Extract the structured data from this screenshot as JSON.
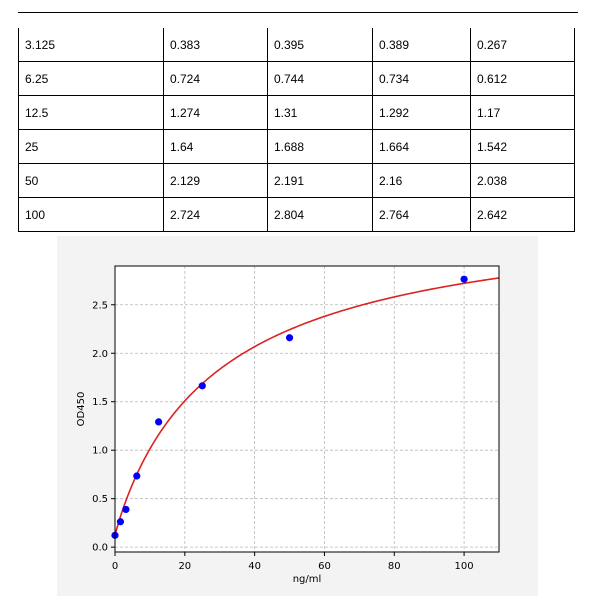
{
  "table": {
    "rows": [
      [
        "3.125",
        "0.383",
        "0.395",
        "0.389",
        "0.267"
      ],
      [
        "6.25",
        "0.724",
        "0.744",
        "0.734",
        "0.612"
      ],
      [
        "12.5",
        "1.274",
        "1.31",
        "1.292",
        "1.17"
      ],
      [
        "25",
        "1.64",
        "1.688",
        "1.664",
        "1.542"
      ],
      [
        "50",
        "2.129",
        "2.191",
        "2.16",
        "2.038"
      ],
      [
        "100",
        "2.724",
        "2.804",
        "2.764",
        "2.642"
      ]
    ]
  },
  "chart_data": {
    "type": "scatter",
    "xlabel": "ng/ml",
    "ylabel": "OD450",
    "xlim": [
      0,
      110
    ],
    "ylim": [
      -0.05,
      2.9
    ],
    "x_ticks": [
      0,
      20,
      40,
      60,
      80,
      100
    ],
    "y_ticks": [
      0.0,
      0.5,
      1.0,
      1.5,
      2.0,
      2.5
    ],
    "grid": true,
    "points": {
      "x": [
        0,
        1.5625,
        3.125,
        6.25,
        12.5,
        25,
        50,
        100
      ],
      "y": [
        0.122,
        0.262,
        0.389,
        0.734,
        1.292,
        1.664,
        2.16,
        2.764
      ],
      "color": "#0000ff"
    },
    "fit_curve": {
      "type": "four-parameter logistic",
      "color": "#dd2222",
      "params": {
        "A": 0.12,
        "B": 0.95,
        "C": 30,
        "D": 3.55
      }
    }
  }
}
